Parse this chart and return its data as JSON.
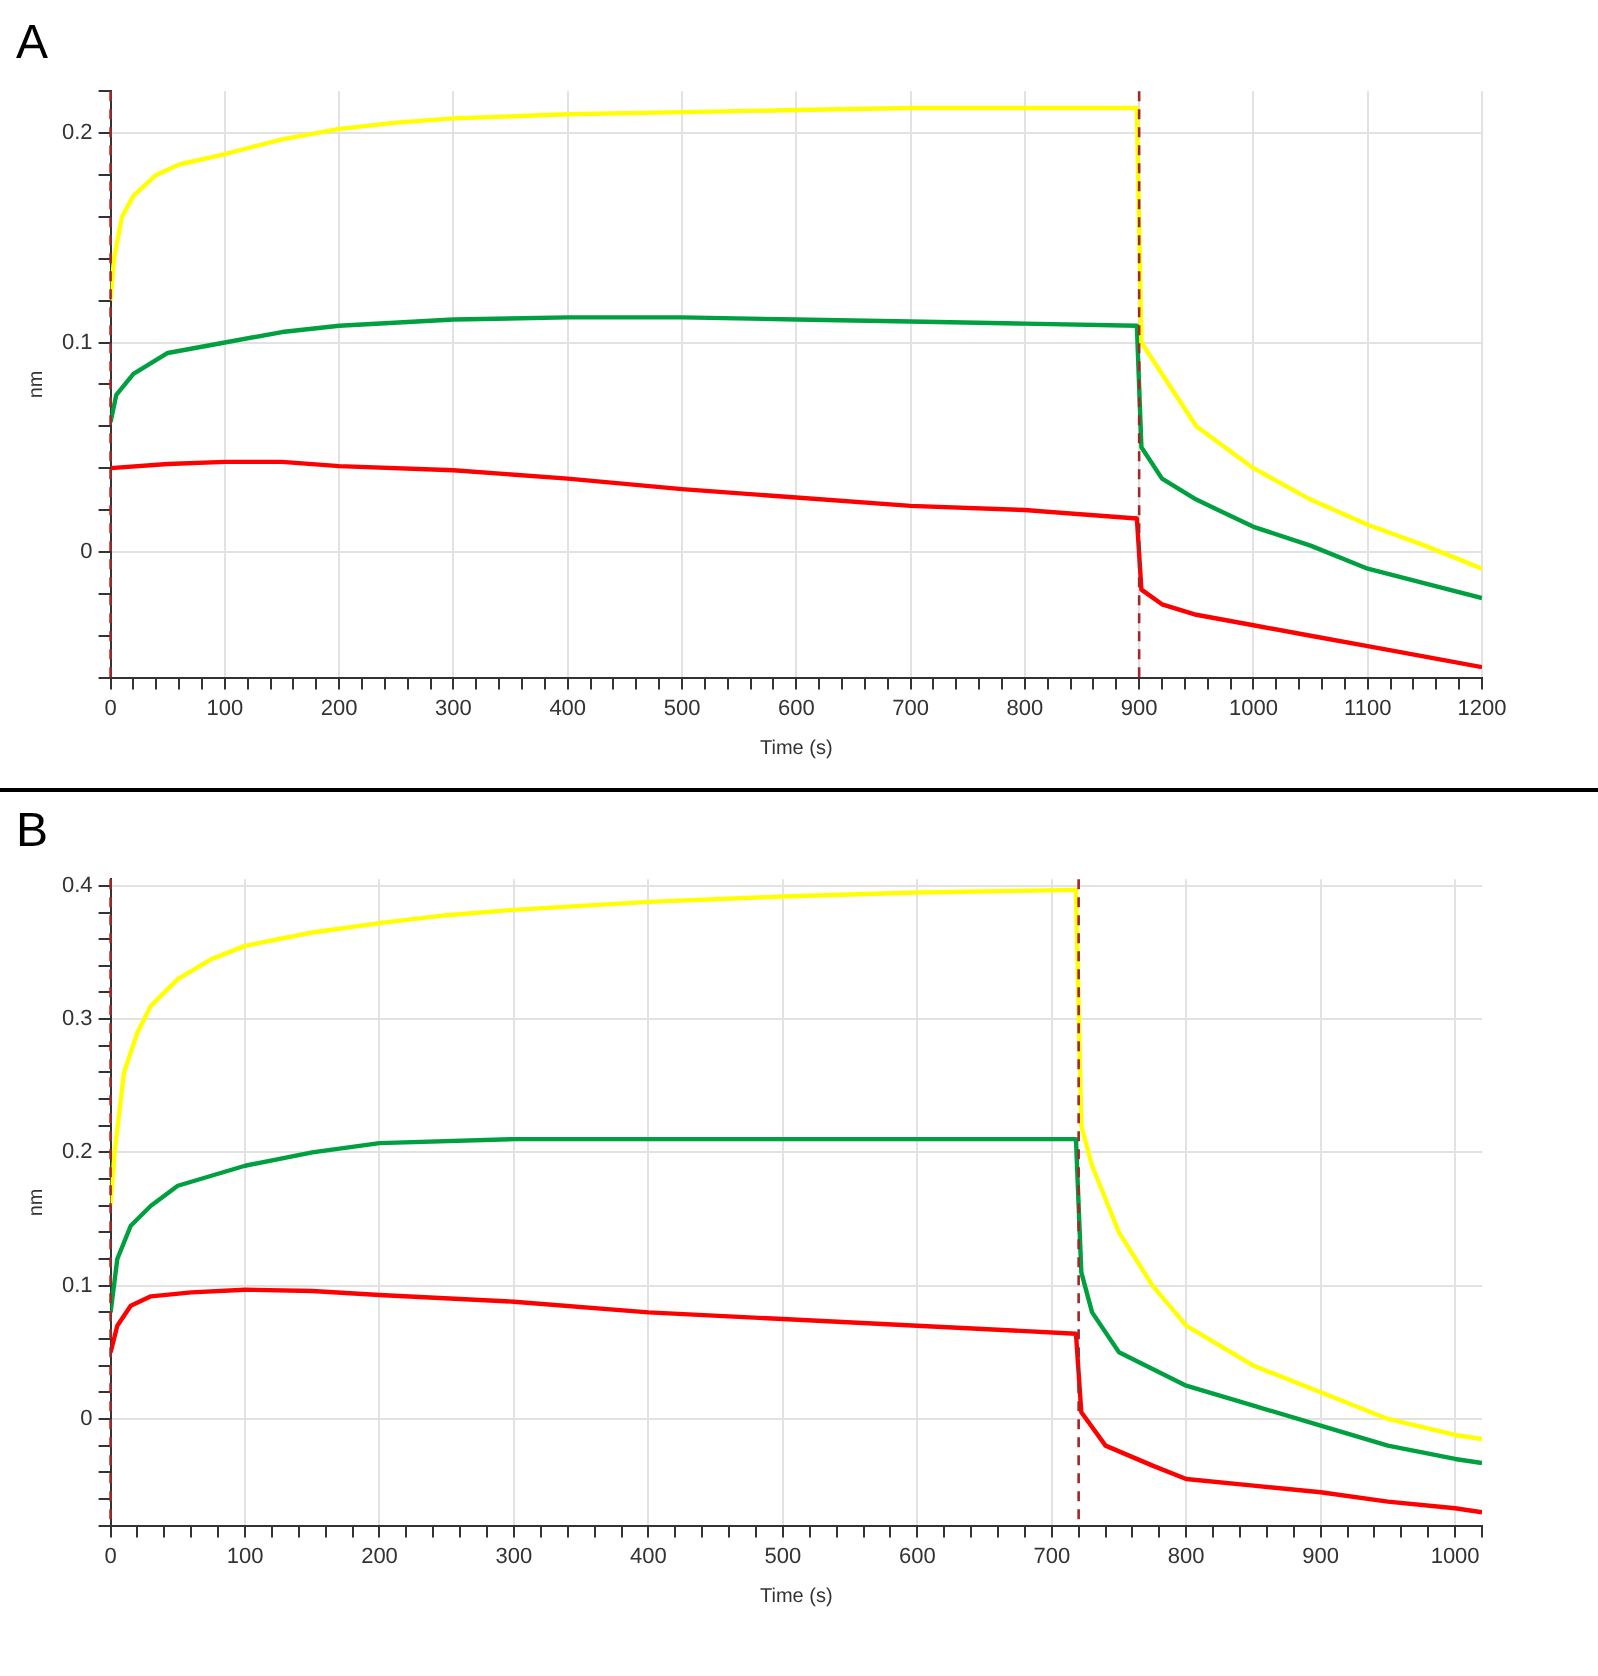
{
  "chart_data": [
    {
      "type": "line",
      "title": "A",
      "xlabel": "Time (s)",
      "ylabel": "nm",
      "grid": true,
      "marker": "none",
      "line_style": "solid",
      "xlim": [
        0,
        1200
      ],
      "ylim": [
        -0.06,
        0.22
      ],
      "xticks": [
        0,
        {
          "value": 20,
          "label": null
        },
        {
          "value": 40,
          "label": null
        },
        {
          "value": 60,
          "label": null
        },
        {
          "value": 80,
          "label": null
        },
        100,
        {
          "value": 120,
          "label": null
        },
        {
          "value": 140,
          "label": null
        },
        {
          "value": 160,
          "label": null
        },
        {
          "value": 180,
          "label": null
        },
        200,
        {
          "value": 220,
          "label": null
        },
        {
          "value": 240,
          "label": null
        },
        {
          "value": 260,
          "label": null
        },
        {
          "value": 280,
          "label": null
        },
        300,
        {
          "value": 320,
          "label": null
        },
        {
          "value": 340,
          "label": null
        },
        {
          "value": 360,
          "label": null
        },
        {
          "value": 380,
          "label": null
        },
        400,
        {
          "value": 420,
          "label": null
        },
        {
          "value": 440,
          "label": null
        },
        {
          "value": 460,
          "label": null
        },
        {
          "value": 480,
          "label": null
        },
        500,
        {
          "value": 520,
          "label": null
        },
        {
          "value": 540,
          "label": null
        },
        {
          "value": 560,
          "label": null
        },
        {
          "value": 580,
          "label": null
        },
        600,
        {
          "value": 620,
          "label": null
        },
        {
          "value": 640,
          "label": null
        },
        {
          "value": 660,
          "label": null
        },
        {
          "value": 680,
          "label": null
        },
        700,
        {
          "value": 720,
          "label": null
        },
        {
          "value": 740,
          "label": null
        },
        {
          "value": 760,
          "label": null
        },
        {
          "value": 780,
          "label": null
        },
        800,
        {
          "value": 820,
          "label": null
        },
        {
          "value": 840,
          "label": null
        },
        {
          "value": 860,
          "label": null
        },
        {
          "value": 880,
          "label": null
        },
        900,
        {
          "value": 920,
          "label": null
        },
        {
          "value": 940,
          "label": null
        },
        {
          "value": 960,
          "label": null
        },
        {
          "value": 980,
          "label": null
        },
        1000,
        {
          "value": 1020,
          "label": null
        },
        {
          "value": 1040,
          "label": null
        },
        {
          "value": 1060,
          "label": null
        },
        {
          "value": 1080,
          "label": null
        },
        1100,
        {
          "value": 1120,
          "label": null
        },
        {
          "value": 1140,
          "label": null
        },
        {
          "value": 1160,
          "label": null
        },
        {
          "value": 1180,
          "label": null
        },
        1200
      ],
      "yticks": [
        {
          "value": -0.06,
          "label": null
        },
        {
          "value": -0.04,
          "label": null
        },
        {
          "value": -0.02,
          "label": null
        },
        0,
        {
          "value": 0.02,
          "label": null
        },
        {
          "value": 0.04,
          "label": null
        },
        {
          "value": 0.06,
          "label": null
        },
        {
          "value": 0.08,
          "label": null
        },
        0.1,
        {
          "value": 0.12,
          "label": null
        },
        {
          "value": 0.14,
          "label": null
        },
        {
          "value": 0.16,
          "label": null
        },
        {
          "value": 0.18,
          "label": null
        },
        0.2,
        {
          "value": 0.22,
          "label": null
        }
      ],
      "ref_lines": [
        {
          "axis": "x",
          "value": 0,
          "color": "#a02828",
          "line_style": "dashed"
        },
        {
          "axis": "x",
          "value": 900,
          "color": "#a02828",
          "line_style": "dashed"
        }
      ],
      "series": [
        {
          "color": "#ffff00",
          "x": [
            0,
            3,
            10,
            20,
            40,
            60,
            100,
            150,
            200,
            250,
            300,
            400,
            500,
            600,
            700,
            800,
            898,
            902,
            920,
            950,
            1000,
            1050,
            1100,
            1150,
            1200
          ],
          "values": [
            0.12,
            0.14,
            0.16,
            0.17,
            0.18,
            0.185,
            0.19,
            0.197,
            0.202,
            0.205,
            0.207,
            0.209,
            0.21,
            0.211,
            0.212,
            0.212,
            0.212,
            0.1,
            0.085,
            0.06,
            0.04,
            0.025,
            0.013,
            0.003,
            -0.008
          ]
        },
        {
          "color": "#00a040",
          "x": [
            0,
            5,
            20,
            50,
            100,
            150,
            200,
            300,
            400,
            500,
            600,
            700,
            800,
            898,
            902,
            920,
            950,
            1000,
            1050,
            1100,
            1150,
            1200
          ],
          "values": [
            0.062,
            0.075,
            0.085,
            0.095,
            0.1,
            0.105,
            0.108,
            0.111,
            0.112,
            0.112,
            0.111,
            0.11,
            0.109,
            0.108,
            0.05,
            0.035,
            0.025,
            0.012,
            0.003,
            -0.008,
            -0.015,
            -0.022
          ]
        },
        {
          "color": "#ff0000",
          "x": [
            0,
            50,
            100,
            150,
            200,
            300,
            400,
            500,
            600,
            700,
            800,
            898,
            902,
            920,
            950,
            1000,
            1050,
            1100,
            1150,
            1200
          ],
          "values": [
            0.04,
            0.042,
            0.043,
            0.043,
            0.041,
            0.039,
            0.035,
            0.03,
            0.026,
            0.022,
            0.02,
            0.016,
            -0.018,
            -0.025,
            -0.03,
            -0.035,
            -0.04,
            -0.045,
            -0.05,
            -0.055
          ]
        }
      ]
    },
    {
      "type": "line",
      "title": "B",
      "xlabel": "Time (s)",
      "ylabel": "nm",
      "grid": true,
      "marker": "none",
      "line_style": "solid",
      "xlim": [
        0,
        1020
      ],
      "ylim": [
        -0.08,
        0.405
      ],
      "xticks": [
        0,
        {
          "value": 20,
          "label": null
        },
        {
          "value": 40,
          "label": null
        },
        {
          "value": 60,
          "label": null
        },
        {
          "value": 80,
          "label": null
        },
        100,
        {
          "value": 120,
          "label": null
        },
        {
          "value": 140,
          "label": null
        },
        {
          "value": 160,
          "label": null
        },
        {
          "value": 180,
          "label": null
        },
        200,
        {
          "value": 220,
          "label": null
        },
        {
          "value": 240,
          "label": null
        },
        {
          "value": 260,
          "label": null
        },
        {
          "value": 280,
          "label": null
        },
        300,
        {
          "value": 320,
          "label": null
        },
        {
          "value": 340,
          "label": null
        },
        {
          "value": 360,
          "label": null
        },
        {
          "value": 380,
          "label": null
        },
        400,
        {
          "value": 420,
          "label": null
        },
        {
          "value": 440,
          "label": null
        },
        {
          "value": 460,
          "label": null
        },
        {
          "value": 480,
          "label": null
        },
        500,
        {
          "value": 520,
          "label": null
        },
        {
          "value": 540,
          "label": null
        },
        {
          "value": 560,
          "label": null
        },
        {
          "value": 580,
          "label": null
        },
        600,
        {
          "value": 620,
          "label": null
        },
        {
          "value": 640,
          "label": null
        },
        {
          "value": 660,
          "label": null
        },
        {
          "value": 680,
          "label": null
        },
        700,
        {
          "value": 720,
          "label": null
        },
        {
          "value": 740,
          "label": null
        },
        {
          "value": 760,
          "label": null
        },
        {
          "value": 780,
          "label": null
        },
        800,
        {
          "value": 820,
          "label": null
        },
        {
          "value": 840,
          "label": null
        },
        {
          "value": 860,
          "label": null
        },
        {
          "value": 880,
          "label": null
        },
        900,
        {
          "value": 920,
          "label": null
        },
        {
          "value": 940,
          "label": null
        },
        {
          "value": 960,
          "label": null
        },
        {
          "value": 980,
          "label": null
        },
        1000,
        {
          "value": 1020,
          "label": null
        }
      ],
      "yticks": [
        {
          "value": -0.08,
          "label": null
        },
        {
          "value": -0.06,
          "label": null
        },
        {
          "value": -0.04,
          "label": null
        },
        {
          "value": -0.02,
          "label": null
        },
        0,
        {
          "value": 0.02,
          "label": null
        },
        {
          "value": 0.04,
          "label": null
        },
        {
          "value": 0.06,
          "label": null
        },
        {
          "value": 0.08,
          "label": null
        },
        0.1,
        {
          "value": 0.12,
          "label": null
        },
        {
          "value": 0.14,
          "label": null
        },
        {
          "value": 0.16,
          "label": null
        },
        {
          "value": 0.18,
          "label": null
        },
        0.2,
        {
          "value": 0.22,
          "label": null
        },
        {
          "value": 0.24,
          "label": null
        },
        {
          "value": 0.26,
          "label": null
        },
        {
          "value": 0.28,
          "label": null
        },
        0.3,
        {
          "value": 0.32,
          "label": null
        },
        {
          "value": 0.34,
          "label": null
        },
        {
          "value": 0.36,
          "label": null
        },
        {
          "value": 0.38,
          "label": null
        },
        0.4
      ],
      "ref_lines": [
        {
          "axis": "x",
          "value": 0,
          "color": "#a02828",
          "line_style": "dashed"
        },
        {
          "axis": "x",
          "value": 720,
          "color": "#a02828",
          "line_style": "dashed"
        }
      ],
      "series": [
        {
          "color": "#ffff00",
          "x": [
            0,
            3,
            10,
            20,
            30,
            50,
            75,
            100,
            150,
            200,
            250,
            300,
            400,
            500,
            600,
            718,
            722,
            730,
            750,
            775,
            800,
            850,
            900,
            950,
            1000,
            1020
          ],
          "values": [
            0.16,
            0.2,
            0.26,
            0.29,
            0.31,
            0.33,
            0.345,
            0.355,
            0.365,
            0.372,
            0.378,
            0.382,
            0.388,
            0.392,
            0.395,
            0.397,
            0.22,
            0.19,
            0.14,
            0.1,
            0.07,
            0.04,
            0.02,
            0.0,
            -0.012,
            -0.015
          ]
        },
        {
          "color": "#00a040",
          "x": [
            0,
            5,
            15,
            30,
            50,
            100,
            150,
            200,
            300,
            400,
            500,
            600,
            718,
            722,
            730,
            750,
            800,
            850,
            900,
            950,
            1000,
            1020
          ],
          "values": [
            0.08,
            0.12,
            0.145,
            0.16,
            0.175,
            0.19,
            0.2,
            0.207,
            0.21,
            0.21,
            0.21,
            0.21,
            0.21,
            0.11,
            0.08,
            0.05,
            0.025,
            0.01,
            -0.005,
            -0.02,
            -0.03,
            -0.033
          ]
        },
        {
          "color": "#ff0000",
          "x": [
            0,
            5,
            15,
            30,
            60,
            100,
            150,
            200,
            300,
            400,
            500,
            600,
            718,
            722,
            740,
            775,
            800,
            850,
            900,
            950,
            1000,
            1020
          ],
          "values": [
            0.05,
            0.07,
            0.085,
            0.092,
            0.095,
            0.097,
            0.096,
            0.093,
            0.088,
            0.08,
            0.075,
            0.07,
            0.064,
            0.005,
            -0.02,
            -0.035,
            -0.045,
            -0.05,
            -0.055,
            -0.062,
            -0.067,
            -0.07
          ]
        }
      ]
    }
  ]
}
